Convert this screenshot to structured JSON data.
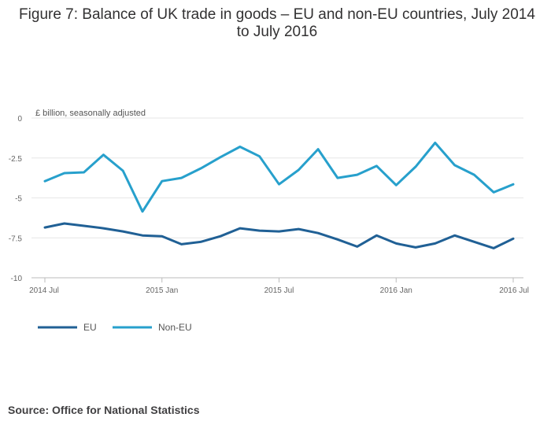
{
  "title": "Figure 7: Balance of UK trade in goods – EU and non-EU countries, July 2014 to July 2016",
  "source": "Source: Office for National Statistics",
  "chart_data": {
    "type": "line",
    "title": "Figure 7: Balance of UK trade in goods – EU and non-EU countries, July 2014 to July 2016",
    "ylabel": "£ billion, seasonally adjusted",
    "xlabel": "",
    "ylim": [
      -10,
      0
    ],
    "yticks": [
      0,
      -2.5,
      -5,
      -7.5,
      -10
    ],
    "ytick_labels": [
      "0",
      "-2.5",
      "-5",
      "-7.5",
      "-10"
    ],
    "x": [
      "2014 Jul",
      "2014 Aug",
      "2014 Sep",
      "2014 Oct",
      "2014 Nov",
      "2014 Dec",
      "2015 Jan",
      "2015 Feb",
      "2015 Mar",
      "2015 Apr",
      "2015 May",
      "2015 Jun",
      "2015 Jul",
      "2015 Aug",
      "2015 Sep",
      "2015 Oct",
      "2015 Nov",
      "2015 Dec",
      "2016 Jan",
      "2016 Feb",
      "2016 Mar",
      "2016 Apr",
      "2016 May",
      "2016 Jun",
      "2016 Jul"
    ],
    "xticks": [
      0,
      6,
      12,
      18,
      24
    ],
    "xtick_labels": [
      "2014 Jul",
      "2015 Jan",
      "2015 Jul",
      "2016 Jan",
      "2016 Jul"
    ],
    "grid": true,
    "legend": "bottom-left",
    "series": [
      {
        "name": "EU",
        "color": "#206095",
        "values": [
          -6.85,
          -6.6,
          -6.75,
          -6.9,
          -7.1,
          -7.35,
          -7.4,
          -7.9,
          -7.75,
          -7.4,
          -6.9,
          -7.05,
          -7.1,
          -6.95,
          -7.2,
          -7.6,
          -8.05,
          -7.35,
          -7.85,
          -8.1,
          -7.85,
          -7.35,
          -7.75,
          -8.15,
          -7.55
        ]
      },
      {
        "name": "Non-EU",
        "color": "#27A0CC",
        "values": [
          -3.95,
          -3.45,
          -3.4,
          -2.3,
          -3.3,
          -5.85,
          -3.95,
          -3.75,
          -3.15,
          -2.45,
          -1.8,
          -2.4,
          -4.15,
          -3.25,
          -1.95,
          -3.75,
          -3.55,
          -3.0,
          -4.2,
          -3.05,
          -1.55,
          -2.95,
          -3.55,
          -4.65,
          -4.15
        ]
      }
    ]
  }
}
